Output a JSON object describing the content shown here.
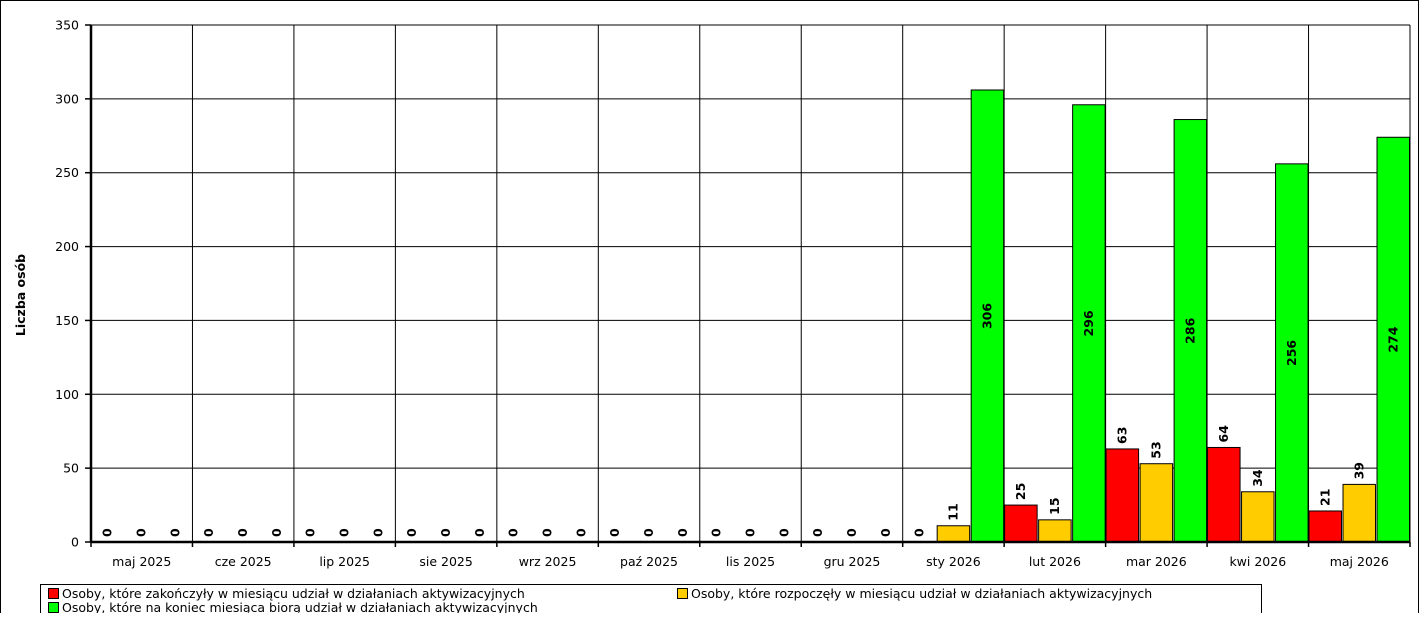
{
  "chart_data": {
    "type": "bar",
    "ylabel": "Liczba osób",
    "xlabel": "",
    "ylim": [
      0,
      350
    ],
    "yticks": [
      0,
      50,
      100,
      150,
      200,
      250,
      300,
      350
    ],
    "grid": true,
    "legend_position": "bottom",
    "categories": [
      "maj 2025",
      "cze 2025",
      "lip 2025",
      "sie 2025",
      "wrz 2025",
      "paź 2025",
      "lis 2025",
      "gru 2025",
      "sty 2026",
      "lut 2026",
      "mar 2026",
      "kwi 2026",
      "maj 2026"
    ],
    "series": [
      {
        "name": "Osoby, które zakończyły w miesiącu udział w działaniach aktywizacyjnych",
        "color": "#ff0000",
        "values": [
          0,
          0,
          0,
          0,
          0,
          0,
          0,
          0,
          0,
          25,
          63,
          64,
          21
        ]
      },
      {
        "name": "Osoby, które rozpoczęły w miesiącu udział w działaniach aktywizacyjnych",
        "color": "#ffcc00",
        "values": [
          0,
          0,
          0,
          0,
          0,
          0,
          0,
          0,
          11,
          15,
          53,
          34,
          39
        ]
      },
      {
        "name": "Osoby, które na koniec miesiąca biorą udział w działaniach aktywizacyjnych",
        "color": "#00ff00",
        "values": [
          0,
          0,
          0,
          0,
          0,
          0,
          0,
          0,
          306,
          296,
          286,
          256,
          274
        ]
      }
    ]
  }
}
